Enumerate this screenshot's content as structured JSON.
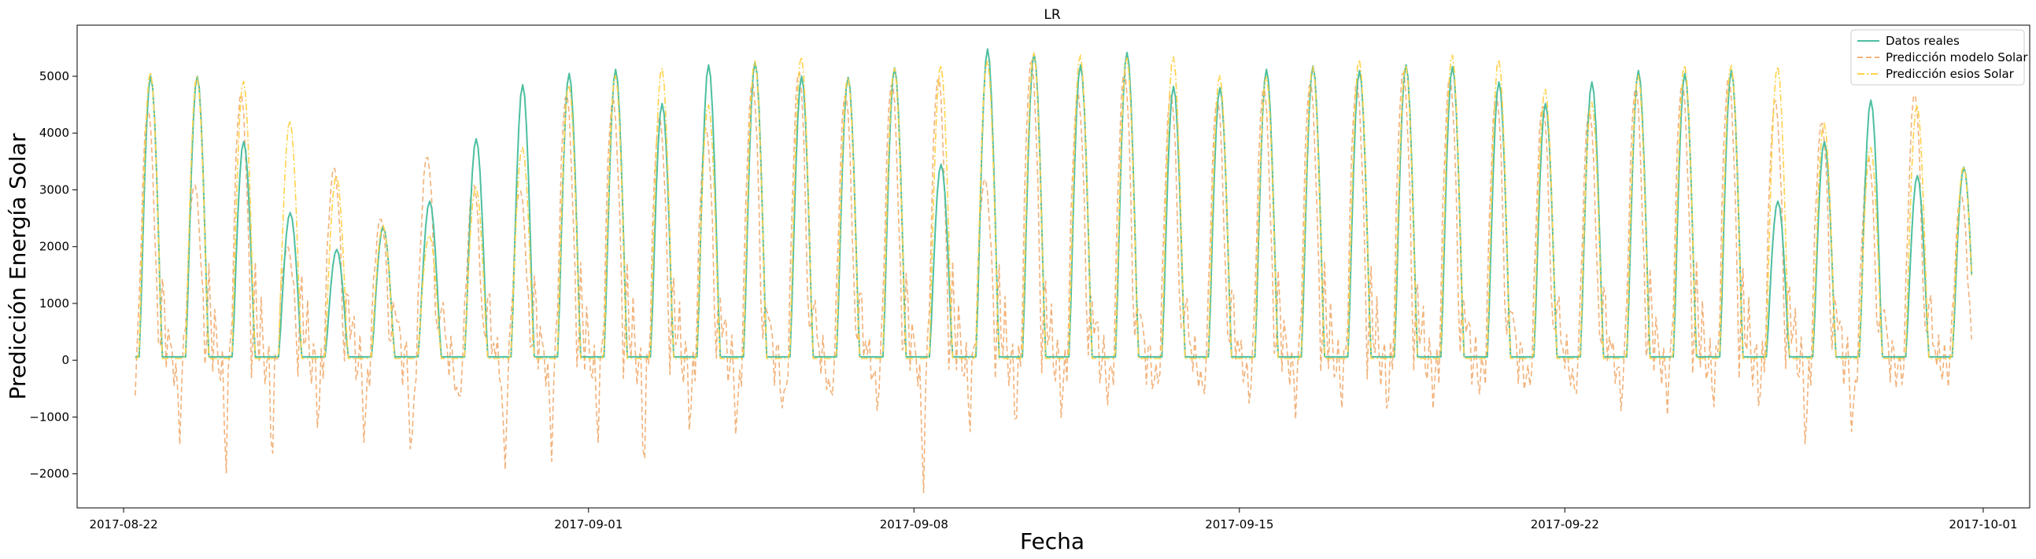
{
  "chart_data": {
    "type": "line",
    "title": "LR",
    "xlabel": "Fecha",
    "ylabel": "Predicción Energía Solar",
    "xlim": [
      "2017-08-21T00:00",
      "2017-10-02T00:00"
    ],
    "ylim": [
      -2600,
      5900
    ],
    "x_ticks": [
      {
        "value": "2017-08-22",
        "label": "2017-08-22"
      },
      {
        "value": "2017-09-01",
        "label": "2017-09-01"
      },
      {
        "value": "2017-09-08",
        "label": "2017-09-08"
      },
      {
        "value": "2017-09-15",
        "label": "2017-09-15"
      },
      {
        "value": "2017-09-22",
        "label": "2017-09-22"
      },
      {
        "value": "2017-10-01",
        "label": "2017-10-01"
      }
    ],
    "y_ticks": [
      -2000,
      -1000,
      0,
      1000,
      2000,
      3000,
      4000,
      5000
    ],
    "y_tick_labels": [
      "−2000",
      "−1000",
      "0",
      "1000",
      "2000",
      "3000",
      "4000",
      "5000"
    ],
    "legend_position": "upper right",
    "grid": false,
    "start": "2017-08-22T06:00",
    "day_peaks_real": [
      5000,
      5000,
      3850,
      2600,
      1950,
      2350,
      2800,
      3900,
      4850,
      5050,
      5120,
      4520,
      5200,
      5250,
      5000,
      4980,
      5150,
      3450,
      5480,
      5400,
      5200,
      5420,
      4820,
      4800,
      5120,
      5180,
      5100,
      5200,
      5170,
      4900,
      4520,
      4900,
      5100,
      5050,
      5100,
      2800,
      3850,
      4580,
      3250,
      3400
    ],
    "day_peaks_esios": [
      5080,
      5000,
      4920,
      4220,
      3250,
      2380,
      2200,
      3050,
      3750,
      4850,
      5020,
      5150,
      4500,
      5280,
      5350,
      4980,
      5150,
      5200,
      5280,
      5420,
      5380,
      5330,
      5350,
      5020,
      5000,
      5180,
      5300,
      5200,
      5380,
      5300,
      4780,
      4550,
      5020,
      5200,
      5200,
      5180,
      4180,
      3750,
      4500,
      3420
    ],
    "day_troughs_model": [
      -1050,
      -1300,
      -1750,
      -1550,
      -1000,
      -1450,
      -2000,
      -1000,
      -2100,
      -1600,
      -1150,
      -1700,
      -1050,
      -1300,
      -1100,
      -850,
      -850,
      -2200,
      -950,
      -950,
      -750,
      -650,
      -550,
      -700,
      -650,
      -700,
      -500,
      -650,
      -550,
      -450,
      -550,
      -700,
      -750,
      -600,
      -500,
      -550,
      -1400,
      -1400,
      -300,
      -150
    ],
    "day_peaks_model": [
      4400,
      3100,
      4700,
      2000,
      3400,
      2500,
      3600,
      3100,
      3000,
      4700,
      4600,
      4300,
      4100,
      4900,
      5100,
      4700,
      4900,
      5000,
      3200,
      5300,
      4700,
      5100,
      4700,
      4600,
      4800,
      4900,
      4900,
      5100,
      5000,
      4700,
      4500,
      4400,
      4800,
      4900,
      5000,
      4600,
      4200,
      3600,
      4700,
      2900
    ],
    "series": [
      {
        "name": "Datos reales",
        "color": "#4dbfa0",
        "dash": "solid"
      },
      {
        "name": "Predicción modelo Solar",
        "color": "#f2b27a",
        "dash": "dashed"
      },
      {
        "name": "Predicción esios Solar",
        "color": "#ffd24a",
        "dash": "dashdot"
      }
    ]
  }
}
